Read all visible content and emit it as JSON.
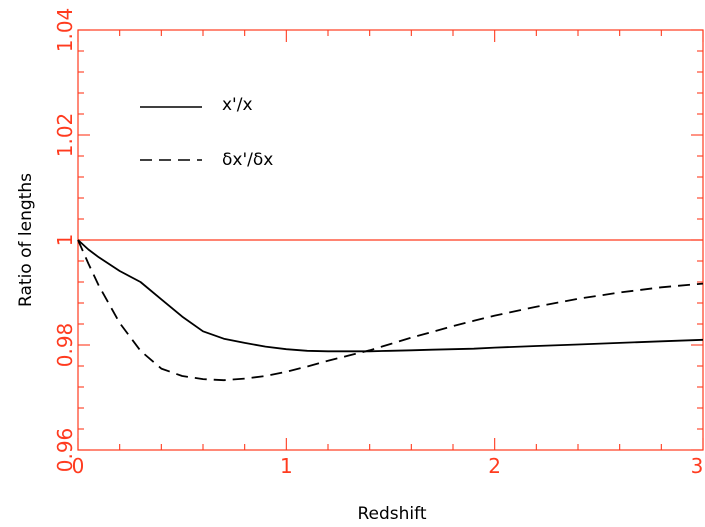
{
  "chart_data": {
    "type": "line",
    "title": "",
    "xlabel": "Redshift",
    "ylabel": "Ratio of lengths",
    "xlim": [
      0,
      3
    ],
    "ylim": [
      0.96,
      1.04
    ],
    "x_ticks": [
      0,
      1,
      2,
      3
    ],
    "x_tick_labels": [
      "0",
      "1",
      "2",
      "3"
    ],
    "y_ticks": [
      0.96,
      0.98,
      1,
      1.02,
      1.04
    ],
    "y_tick_labels": [
      "0.96",
      "0.98",
      "1",
      "1.02",
      "1.04"
    ],
    "reference_line": {
      "y": 1
    },
    "grid": false,
    "legend_position": "upper-left",
    "colors": {
      "frame": "#ff3b1f",
      "tick_label": "#ff3b1f",
      "series": "#000000"
    },
    "series": [
      {
        "name": "x'/x",
        "style": "solid",
        "x": [
          0,
          0.05,
          0.1,
          0.2,
          0.3,
          0.4,
          0.5,
          0.6,
          0.7,
          0.8,
          0.9,
          1.0,
          1.1,
          1.2,
          1.3,
          1.4,
          1.5,
          1.6,
          1.7,
          1.8,
          1.9,
          2.0,
          2.2,
          2.4,
          2.6,
          2.8,
          3.0
        ],
        "y": [
          1.0,
          0.9982,
          0.9967,
          0.9941,
          0.992,
          0.9887,
          0.9854,
          0.9826,
          0.9812,
          0.9804,
          0.9797,
          0.9792,
          0.9789,
          0.9788,
          0.9788,
          0.9788,
          0.9789,
          0.979,
          0.9791,
          0.9792,
          0.9793,
          0.9795,
          0.9798,
          0.9801,
          0.9804,
          0.9807,
          0.981
        ]
      },
      {
        "name": "δx'/δx",
        "style": "dashed",
        "x": [
          0,
          0.05,
          0.1,
          0.2,
          0.3,
          0.4,
          0.5,
          0.6,
          0.7,
          0.8,
          0.9,
          1.0,
          1.1,
          1.2,
          1.3,
          1.4,
          1.5,
          1.6,
          1.7,
          1.8,
          1.9,
          2.0,
          2.2,
          2.4,
          2.6,
          2.8,
          3.0
        ],
        "y": [
          1.0,
          0.9955,
          0.9913,
          0.9842,
          0.9789,
          0.9755,
          0.9741,
          0.9735,
          0.9733,
          0.9736,
          0.9741,
          0.9749,
          0.9759,
          0.977,
          0.978,
          0.979,
          0.9802,
          0.9814,
          0.9825,
          0.9836,
          0.9846,
          0.9856,
          0.9873,
          0.9888,
          0.99,
          0.991,
          0.9917
        ]
      }
    ],
    "legend": [
      {
        "label": "x'/x",
        "style": "solid"
      },
      {
        "label": "δx'/δx",
        "style": "dashed"
      }
    ]
  }
}
